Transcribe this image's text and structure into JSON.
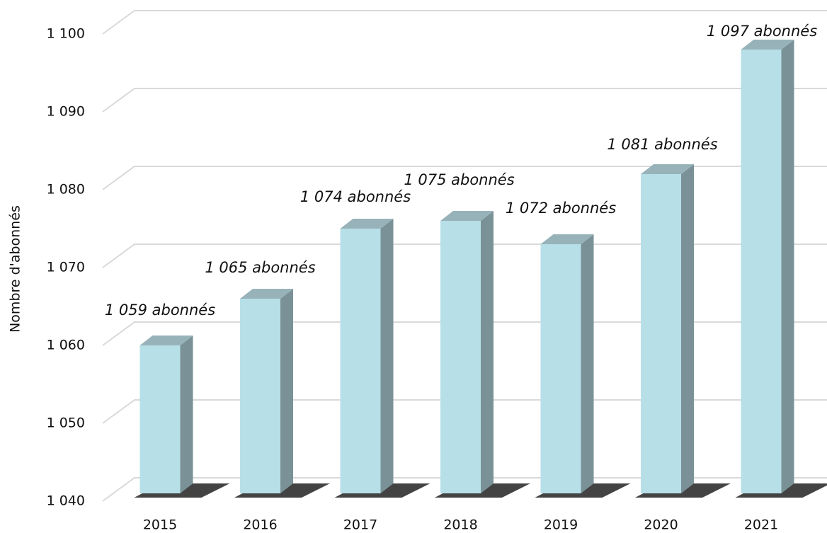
{
  "chart_data": {
    "type": "bar3d",
    "y_label": "Nombre d'abonnés",
    "categories": [
      "2015",
      "2016",
      "2017",
      "2018",
      "2019",
      "2020",
      "2021"
    ],
    "values": [
      1059,
      1065,
      1074,
      1075,
      1072,
      1081,
      1097
    ],
    "value_labels": [
      "1 059 abonnés",
      "1 065 abonnés",
      "1 074 abonnés",
      "1 075 abonnés",
      "1 072 abonnés",
      "1 081 abonnés",
      "1 097 abonnés"
    ],
    "color": "#b7dfe8",
    "ylim": [
      1040,
      1100
    ],
    "yticks": [
      {
        "value": 1040,
        "label": "1 040"
      },
      {
        "value": 1050,
        "label": "1 050"
      },
      {
        "value": 1060,
        "label": "1 060"
      },
      {
        "value": 1070,
        "label": "1 070"
      },
      {
        "value": 1080,
        "label": "1 080"
      },
      {
        "value": 1090,
        "label": "1 090"
      },
      {
        "value": 1100,
        "label": "1 100"
      }
    ],
    "grid": true
  }
}
